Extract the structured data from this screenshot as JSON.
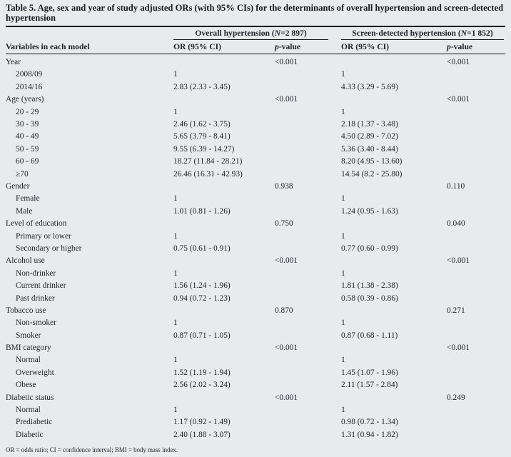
{
  "title": "Table 5. Age, sex and year of study adjusted ORs (with 95% CIs) for the determinants of overall hypertension and screen-detected hypertension",
  "groups": [
    {
      "before": "Overall hypertension (",
      "n": "N",
      "after": "=2 897)"
    },
    {
      "before": "Screen-detected hypertension (",
      "n": "N",
      "after": "=1 852)"
    }
  ],
  "headers": {
    "variables": "Variables in each model",
    "or": "OR (95% CI)",
    "p_italic": "p",
    "p_rest": "-value"
  },
  "rows": [
    {
      "label": "Year",
      "sub": false,
      "or1": "",
      "p1": "<0.001",
      "or2": "",
      "p2": "<0.001"
    },
    {
      "label": "2008/09",
      "sub": true,
      "or1": "1",
      "p1": "",
      "or2": "1",
      "p2": ""
    },
    {
      "label": "2014/16",
      "sub": true,
      "or1": "2.83 (2.33 - 3.45)",
      "p1": "",
      "or2": "4.33 (3.29 - 5.69)",
      "p2": ""
    },
    {
      "label": "Age (years)",
      "sub": false,
      "or1": "",
      "p1": "<0.001",
      "or2": "",
      "p2": "<0.001"
    },
    {
      "label": "20 - 29",
      "sub": true,
      "or1": "1",
      "p1": "",
      "or2": "1",
      "p2": ""
    },
    {
      "label": "30 - 39",
      "sub": true,
      "or1": "2.46 (1.62 - 3.75)",
      "p1": "",
      "or2": "2.18 (1.37 - 3.48)",
      "p2": ""
    },
    {
      "label": "40 - 49",
      "sub": true,
      "or1": "5.65 (3.79 - 8.41)",
      "p1": "",
      "or2": "4.50 (2.89 - 7.02)",
      "p2": ""
    },
    {
      "label": "50 - 59",
      "sub": true,
      "or1": "9.55 (6.39 - 14.27)",
      "p1": "",
      "or2": "5.36 (3.40 - 8.44)",
      "p2": ""
    },
    {
      "label": "60 - 69",
      "sub": true,
      "or1": "18.27 (11.84 - 28.21)",
      "p1": "",
      "or2": "8.20 (4.95 - 13.60)",
      "p2": ""
    },
    {
      "label": "≥70",
      "sub": true,
      "or1": "26.46 (16.31 - 42.93)",
      "p1": "",
      "or2": "14.54 (8.2 - 25.80)",
      "p2": ""
    },
    {
      "label": "Gender",
      "sub": false,
      "or1": "",
      "p1": "0.938",
      "or2": "",
      "p2": "0.110"
    },
    {
      "label": "Female",
      "sub": true,
      "or1": "1",
      "p1": "",
      "or2": "1",
      "p2": ""
    },
    {
      "label": "Male",
      "sub": true,
      "or1": "1.01 (0.81 - 1.26)",
      "p1": "",
      "or2": "1.24 (0.95 - 1.63)",
      "p2": ""
    },
    {
      "label": "Level of education",
      "sub": false,
      "or1": "",
      "p1": "0.750",
      "or2": "",
      "p2": "0.040"
    },
    {
      "label": "Primary or lower",
      "sub": true,
      "or1": "1",
      "p1": "",
      "or2": "1",
      "p2": ""
    },
    {
      "label": "Secondary or higher",
      "sub": true,
      "or1": "0.75 (0.61 - 0.91)",
      "p1": "",
      "or2": "0.77 (0.60 - 0.99)",
      "p2": ""
    },
    {
      "label": "Alcohol use",
      "sub": false,
      "or1": "",
      "p1": "<0.001",
      "or2": "",
      "p2": "<0.001"
    },
    {
      "label": "Non-drinker",
      "sub": true,
      "or1": "1",
      "p1": "",
      "or2": "1",
      "p2": ""
    },
    {
      "label": "Current drinker",
      "sub": true,
      "or1": "1.56 (1.24 - 1.96)",
      "p1": "",
      "or2": "1.81 (1.38 - 2.38)",
      "p2": ""
    },
    {
      "label": "Past drinker",
      "sub": true,
      "or1": "0.94 (0.72 - 1.23)",
      "p1": "",
      "or2": "0.58 (0.39 - 0.86)",
      "p2": ""
    },
    {
      "label": "Tobacco use",
      "sub": false,
      "or1": "",
      "p1": "0.870",
      "or2": "",
      "p2": "0.271"
    },
    {
      "label": "Non-smoker",
      "sub": true,
      "or1": "1",
      "p1": "",
      "or2": "1",
      "p2": ""
    },
    {
      "label": "Smoker",
      "sub": true,
      "or1": "0.87 (0.71 - 1.05)",
      "p1": "",
      "or2": "0.87 (0.68 - 1.11)",
      "p2": ""
    },
    {
      "label": "BMI category",
      "sub": false,
      "or1": "",
      "p1": "<0.001",
      "or2": "",
      "p2": "<0.001"
    },
    {
      "label": "Normal",
      "sub": true,
      "or1": "1",
      "p1": "",
      "or2": "1",
      "p2": ""
    },
    {
      "label": "Overweight",
      "sub": true,
      "or1": "1.52 (1.19 - 1.94)",
      "p1": "",
      "or2": "1.45 (1.07 - 1.96)",
      "p2": ""
    },
    {
      "label": "Obese",
      "sub": true,
      "or1": "2.56 (2.02 - 3.24)",
      "p1": "",
      "or2": "2.11 (1.57 - 2.84)",
      "p2": ""
    },
    {
      "label": "Diabetic status",
      "sub": false,
      "or1": "",
      "p1": "<0.001",
      "or2": "",
      "p2": "0.249"
    },
    {
      "label": "Normal",
      "sub": true,
      "or1": "1",
      "p1": "",
      "or2": "1",
      "p2": ""
    },
    {
      "label": "Prediabetic",
      "sub": true,
      "or1": "1.17 (0.92 - 1.49)",
      "p1": "",
      "or2": "0.98 (0.72 - 1.34)",
      "p2": ""
    },
    {
      "label": "Diabetic",
      "sub": true,
      "or1": "2.40 (1.88 - 3.07)",
      "p1": "",
      "or2": "1.31 (0.94 - 1.82)",
      "p2": ""
    }
  ],
  "footnote": "OR = odds ratio; CI = confidence interval; BMI = body mass index."
}
